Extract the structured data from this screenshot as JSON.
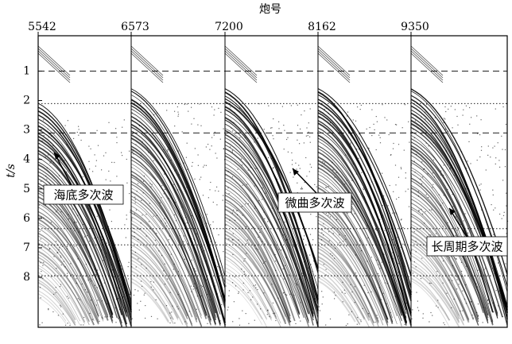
{
  "figure": {
    "x_title": "炮号",
    "shot_labels": [
      "5542",
      "6573",
      "7200",
      "8162",
      "9350"
    ],
    "y_label": "t/s",
    "yticks": [
      1,
      2,
      3,
      4,
      5,
      6,
      7,
      8
    ],
    "ylim": [
      -0.2,
      9.7
    ],
    "reference_lines": [
      {
        "value": 1,
        "style": "dashed"
      },
      {
        "value": 2.1,
        "style": "dotted"
      },
      {
        "value": 3.1,
        "style": "dashed"
      },
      {
        "value": 6.35,
        "style": "dotted"
      },
      {
        "value": 6.9,
        "style": "dotted"
      },
      {
        "value": 7.95,
        "style": "dotted"
      }
    ],
    "annotations": [
      "海底多次波",
      "微曲多次波",
      "长周期多次波"
    ]
  }
}
